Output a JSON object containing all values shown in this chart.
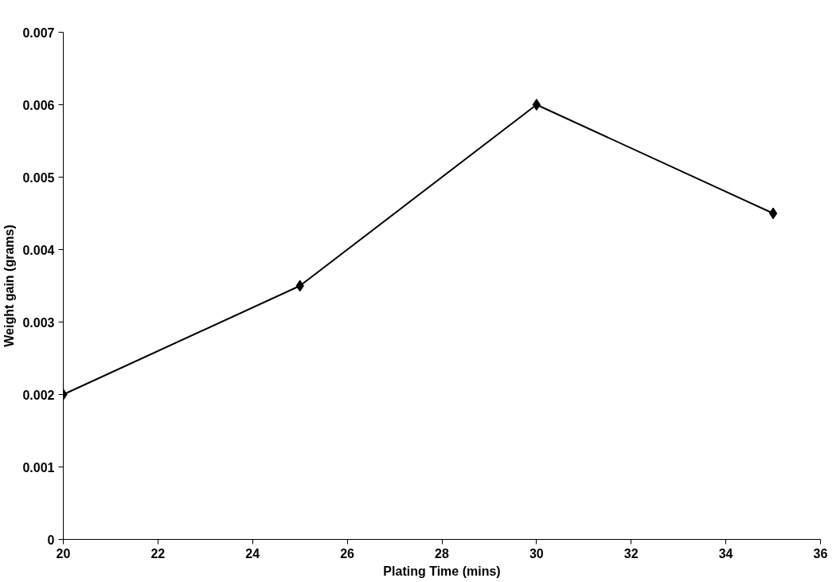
{
  "chart_data": {
    "type": "line",
    "xlabel": "Plating Time (mins)",
    "ylabel": "Weight gain (grams)",
    "x": [
      20,
      25,
      30,
      35
    ],
    "series": [
      {
        "color": "#000000",
        "values": [
          0.002,
          0.0035,
          0.006,
          0.0045
        ]
      }
    ],
    "xlim": [
      20,
      36
    ],
    "xticks": [
      20,
      22,
      24,
      26,
      28,
      30,
      32,
      34,
      36
    ],
    "ylim": [
      0,
      0.007
    ],
    "yticks": [
      {
        "value": 0,
        "label": "0"
      },
      0.001,
      0.002,
      0.003,
      0.004,
      0.005,
      0.006,
      0.007
    ],
    "grid": false,
    "marker": "diamond",
    "line_style": "solid"
  }
}
